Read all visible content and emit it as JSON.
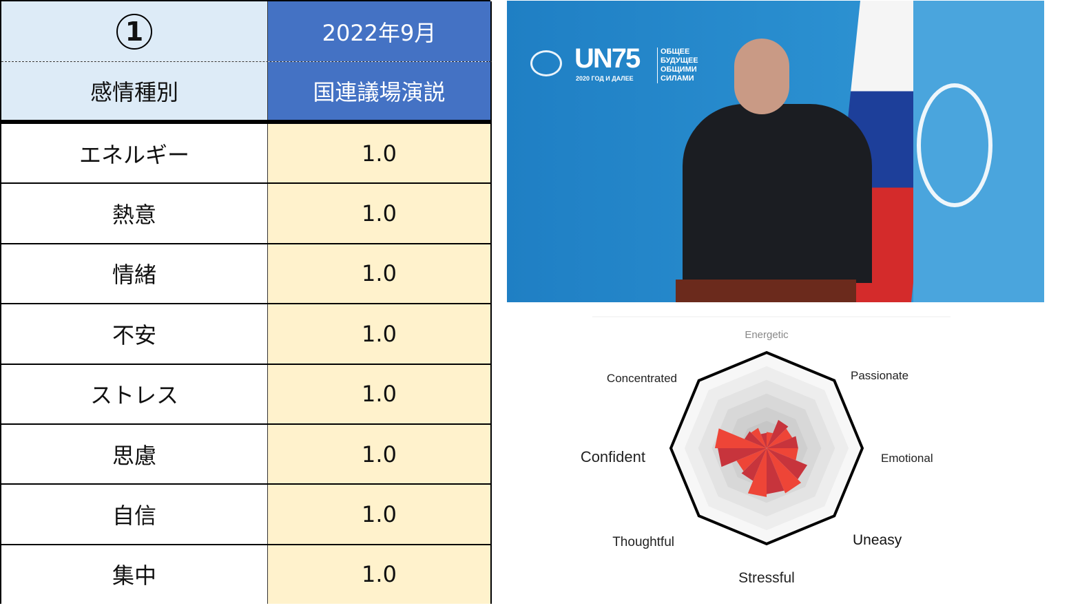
{
  "table": {
    "header_number": "1",
    "header_date": "2022年9月",
    "col_label": "感情種別",
    "col_event": "国連議場演説",
    "rows": [
      {
        "label": "エネルギー",
        "value": "1.0"
      },
      {
        "label": "熱意",
        "value": "1.0"
      },
      {
        "label": "情緒",
        "value": "1.0"
      },
      {
        "label": "不安",
        "value": "1.0"
      },
      {
        "label": "ストレス",
        "value": "1.0"
      },
      {
        "label": "思慮",
        "value": "1.0"
      },
      {
        "label": "自信",
        "value": "1.0"
      },
      {
        "label": "集中",
        "value": "1.0"
      }
    ],
    "colors": {
      "header_left": "#ddebf7",
      "header_right": "#4472c4",
      "value_bg": "#fff2cc"
    }
  },
  "photo": {
    "logo_main": "UN75",
    "logo_sub": "2020 ГОД И ДАЛЕЕ",
    "slogan": [
      "ОБЩЕЕ",
      "БУДУЩЕЕ",
      "ОБЩИМИ",
      "СИЛАМИ"
    ]
  },
  "chart_data": {
    "type": "radar-rose",
    "axes": [
      "Energetic",
      "Passionate",
      "Emotional",
      "Uneasy",
      "Stressful",
      "Thoughtful",
      "Confident",
      "Concentrated"
    ],
    "range": [
      0,
      1
    ],
    "rings": 7,
    "wedge_values": [
      0.17,
      0.32,
      0.29,
      0.33,
      0.33,
      0.46,
      0.51,
      0.48,
      0.51,
      0.37,
      0.34,
      0.51,
      0.54,
      0.25,
      0.23,
      0.16
    ],
    "colors": {
      "light": "#ee4537",
      "dark": "#c7343c",
      "outline": "#000000"
    }
  }
}
